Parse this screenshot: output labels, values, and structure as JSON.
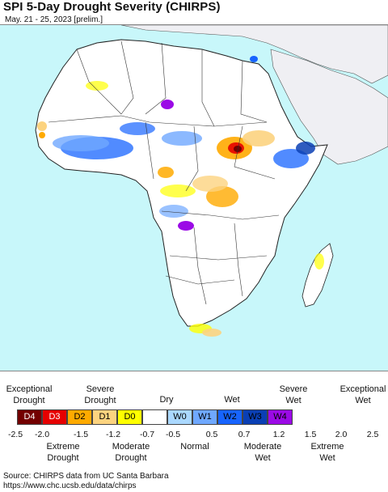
{
  "header": {
    "title": "SPI 5-Day Drought Severity (CHIRPS)",
    "subtitle": "May. 21 - 25, 2023 [prelim.]"
  },
  "colors": {
    "ocean": "#c8f7fa",
    "land": "#ffffff",
    "non_africa_land": "#efeff3",
    "border": "#222222"
  },
  "legend": {
    "top_labels": [
      {
        "text": "Exceptional\nDrought"
      },
      {
        "text": "Severe\nDrought"
      },
      {
        "text": "Dry"
      },
      {
        "text": "Wet"
      },
      {
        "text": "Severe\nWet"
      },
      {
        "text": "Exceptional\nWet"
      }
    ],
    "categories": [
      {
        "code": "D4",
        "color": "#730000",
        "text_color": "#ffffff"
      },
      {
        "code": "D3",
        "color": "#e60000",
        "text_color": "#ffffff"
      },
      {
        "code": "D2",
        "color": "#ffaa00",
        "text_color": "#000000"
      },
      {
        "code": "D1",
        "color": "#fcd37f",
        "text_color": "#000000"
      },
      {
        "code": "D0",
        "color": "#ffff00",
        "text_color": "#000000"
      },
      {
        "code": "",
        "color": "#ffffff",
        "text_color": "#000000"
      },
      {
        "code": "W0",
        "color": "#aad8ff",
        "text_color": "#000000"
      },
      {
        "code": "W1",
        "color": "#6fa8ff",
        "text_color": "#000000"
      },
      {
        "code": "W2",
        "color": "#1764ff",
        "text_color": "#000000"
      },
      {
        "code": "W3",
        "color": "#0a3fb4",
        "text_color": "#000000"
      },
      {
        "code": "W4",
        "color": "#9b0ae6",
        "text_color": "#000000"
      }
    ],
    "ticks": [
      "-2.5",
      "-2.0",
      "-1.5",
      "-1.2",
      "-0.7",
      "-0.5",
      "0.5",
      "0.7",
      "1.2",
      "1.5",
      "2.0",
      "2.5"
    ],
    "bottom_labels": [
      {
        "text": "Extreme\nDrought"
      },
      {
        "text": "Moderate\nDrought"
      },
      {
        "text": "Normal"
      },
      {
        "text": "Moderate\nWet"
      },
      {
        "text": "Extreme\nWet"
      }
    ]
  },
  "source": {
    "line1": "Source: CHIRPS data from UC Santa Barbara",
    "line2": "https://www.chc.ucsb.edu/data/chirps"
  }
}
